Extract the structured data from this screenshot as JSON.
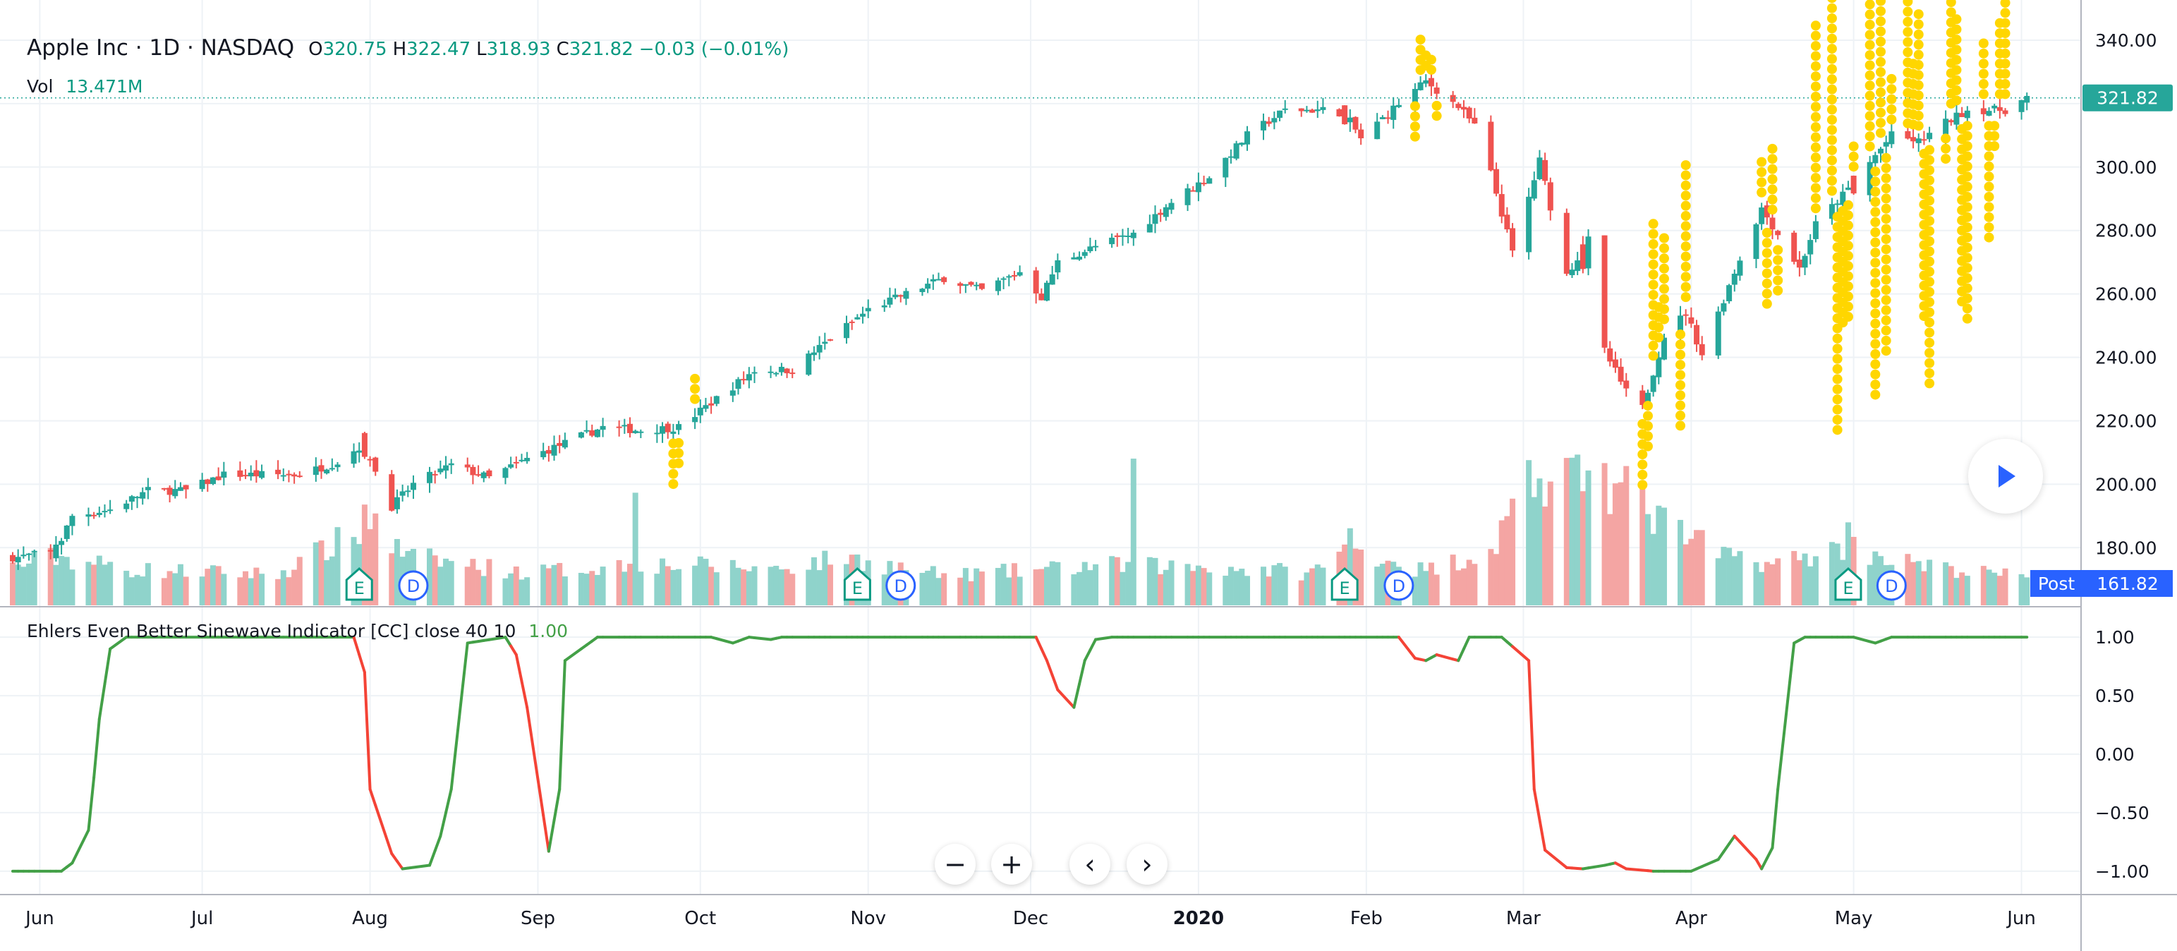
{
  "legend": {
    "symbol": "Apple Inc · 1D · NASDAQ",
    "o_label": "O",
    "o_value": "320.75",
    "h_label": "H",
    "h_value": "322.47",
    "l_label": "L",
    "l_value": "318.93",
    "c_label": "C",
    "c_value": "321.82",
    "change": "−0.03 (−0.01%)"
  },
  "volume_legend": {
    "label": "Vol",
    "value": "13.471M"
  },
  "indicator_legend": {
    "label": "Ehlers Even Better Sinewave Indicator [CC] close 40 10",
    "value": "1.00"
  },
  "price_badge": "321.82",
  "post_badge": {
    "label": "Post",
    "value": "161.82"
  },
  "nav_buttons": {
    "zoom_out": "−",
    "zoom_in": "+",
    "back": "‹",
    "forward": "›"
  },
  "colors": {
    "up": "#26a69a",
    "down": "#ef5350",
    "vol_up": "#8fd3cb",
    "vol_down": "#f4a5a3",
    "dots": "#ffd600",
    "sine_up": "#43a047",
    "sine_down": "#f44336",
    "accent": "#2962ff"
  },
  "chart_data": [
    {
      "type": "candlestick",
      "title": "Apple Inc · 1D · NASDAQ",
      "x_axis": {
        "type": "date",
        "range": [
          "2019-05-27",
          "2020-06-12"
        ],
        "tick_labels": [
          "Jun",
          "Jul",
          "Aug",
          "Sep",
          "Oct",
          "Nov",
          "Dec",
          "2020",
          "Feb",
          "Mar",
          "Apr",
          "May",
          "Jun"
        ],
        "tick_dates": [
          "2019-06-01",
          "2019-07-01",
          "2019-08-01",
          "2019-09-01",
          "2019-10-01",
          "2019-11-01",
          "2019-12-01",
          "2020-01-01",
          "2020-02-01",
          "2020-03-01",
          "2020-04-01",
          "2020-05-01",
          "2020-06-01"
        ]
      },
      "y_axis": {
        "position": "right",
        "range": [
          161.82,
          346
        ],
        "ticks": [
          180,
          200,
          220,
          240,
          260,
          280,
          300,
          320,
          340
        ],
        "tick_labels": [
          "180.00",
          "200.00",
          "220.00",
          "240.00",
          "260.00",
          "280.00",
          "300.00",
          "320.00",
          "340.00"
        ]
      },
      "last_price": 321.82,
      "grid": true,
      "price_keypoints": [
        [
          "2019-05-28",
          177
        ],
        [
          "2019-06-04",
          179
        ],
        [
          "2019-06-07",
          190
        ],
        [
          "2019-06-14",
          192
        ],
        [
          "2019-06-21",
          198
        ],
        [
          "2019-06-28",
          198
        ],
        [
          "2019-07-05",
          203
        ],
        [
          "2019-07-12",
          203
        ],
        [
          "2019-07-19",
          203
        ],
        [
          "2019-07-26",
          207
        ],
        [
          "2019-07-31",
          213
        ],
        [
          "2019-08-02",
          204
        ],
        [
          "2019-08-05",
          193
        ],
        [
          "2019-08-09",
          200
        ],
        [
          "2019-08-16",
          206
        ],
        [
          "2019-08-23",
          202
        ],
        [
          "2019-08-30",
          208
        ],
        [
          "2019-09-06",
          213
        ],
        [
          "2019-09-13",
          218
        ],
        [
          "2019-09-20",
          217
        ],
        [
          "2019-09-27",
          218
        ],
        [
          "2019-10-04",
          227
        ],
        [
          "2019-10-11",
          236
        ],
        [
          "2019-10-18",
          236
        ],
        [
          "2019-10-25",
          246
        ],
        [
          "2019-11-01",
          255
        ],
        [
          "2019-11-08",
          260
        ],
        [
          "2019-11-15",
          265
        ],
        [
          "2019-11-22",
          261
        ],
        [
          "2019-11-29",
          267
        ],
        [
          "2019-12-03",
          259
        ],
        [
          "2019-12-06",
          270
        ],
        [
          "2019-12-13",
          275
        ],
        [
          "2019-12-20",
          279
        ],
        [
          "2019-12-27",
          289
        ],
        [
          "2020-01-03",
          297
        ],
        [
          "2020-01-10",
          310
        ],
        [
          "2020-01-17",
          318
        ],
        [
          "2020-01-24",
          318
        ],
        [
          "2020-01-28",
          317
        ],
        [
          "2020-01-31",
          309
        ],
        [
          "2020-02-07",
          320
        ],
        [
          "2020-02-12",
          327
        ],
        [
          "2020-02-18",
          319
        ],
        [
          "2020-02-21",
          313
        ],
        [
          "2020-02-24",
          298
        ],
        [
          "2020-02-28",
          273
        ],
        [
          "2020-03-04",
          302
        ],
        [
          "2020-03-09",
          266
        ],
        [
          "2020-03-13",
          277
        ],
        [
          "2020-03-16",
          242
        ],
        [
          "2020-03-20",
          229
        ],
        [
          "2020-03-23",
          224
        ],
        [
          "2020-03-27",
          247
        ],
        [
          "2020-03-31",
          254
        ],
        [
          "2020-04-03",
          241
        ],
        [
          "2020-04-09",
          267
        ],
        [
          "2020-04-14",
          287
        ],
        [
          "2020-04-21",
          268
        ],
        [
          "2020-04-24",
          282
        ],
        [
          "2020-04-30",
          293
        ],
        [
          "2020-05-08",
          310
        ],
        [
          "2020-05-13",
          308
        ],
        [
          "2020-05-18",
          314
        ],
        [
          "2020-05-22",
          318
        ],
        [
          "2020-05-29",
          318
        ],
        [
          "2020-06-02",
          321.82
        ]
      ],
      "big_moves": {
        "2019-06-03": "down",
        "2019-06-04": "up",
        "2019-07-31": "down",
        "2019-08-05": "down",
        "2019-09-04": "up",
        "2019-10-10": "up",
        "2019-10-28": "up",
        "2019-12-03": "down",
        "2020-01-28": "down",
        "2020-01-29": "up",
        "2020-02-24": "down",
        "2020-02-27": "down",
        "2020-03-02": "up",
        "2020-03-09": "down",
        "2020-03-10": "up",
        "2020-03-12": "down",
        "2020-03-13": "up",
        "2020-03-16": "down",
        "2020-03-20": "down",
        "2020-03-24": "up",
        "2020-04-06": "up",
        "2020-04-14": "up",
        "2020-04-21": "down",
        "2020-04-30": "up",
        "2020-05-01": "down"
      },
      "signal_dots": [
        {
          "start": "2019-09-26",
          "end": "2019-09-30",
          "min": 3,
          "max": 5
        },
        {
          "start": "2020-02-10",
          "end": "2020-02-14",
          "min": 2,
          "max": 4
        },
        {
          "start": "2020-03-23",
          "end": "2020-03-31",
          "min": 3,
          "max": 14
        },
        {
          "start": "2020-04-14",
          "end": "2020-04-17",
          "min": 3,
          "max": 8
        },
        {
          "start": "2020-04-24",
          "end": "2020-05-29",
          "min": 3,
          "max": 24
        }
      ]
    },
    {
      "type": "bar",
      "name": "Vol",
      "last_value": "13.471M",
      "baseline": 40,
      "volume_levels": [
        [
          "2019-05-27",
          26
        ],
        [
          "2019-06-04",
          33
        ],
        [
          "2019-06-18",
          24
        ],
        [
          "2019-07-15",
          21
        ],
        [
          "2019-07-31",
          52
        ],
        [
          "2019-08-02",
          48
        ],
        [
          "2019-08-08",
          33
        ],
        [
          "2019-08-30",
          22
        ],
        [
          "2019-09-20",
          28
        ],
        [
          "2019-10-15",
          25
        ],
        [
          "2019-10-28",
          32
        ],
        [
          "2019-11-15",
          20
        ],
        [
          "2019-12-03",
          24
        ],
        [
          "2019-12-13",
          27
        ],
        [
          "2020-01-02",
          26
        ],
        [
          "2020-01-22",
          22
        ],
        [
          "2020-01-29",
          40
        ],
        [
          "2020-02-12",
          23
        ],
        [
          "2020-02-24",
          38
        ],
        [
          "2020-03-02",
          78
        ],
        [
          "2020-03-16",
          84
        ],
        [
          "2020-03-27",
          55
        ],
        [
          "2020-04-06",
          35
        ],
        [
          "2020-04-17",
          28
        ],
        [
          "2020-04-30",
          40
        ],
        [
          "2020-05-14",
          26
        ],
        [
          "2020-06-02",
          19
        ]
      ],
      "volume_spikes": {
        "2019-07-31": 68,
        "2019-08-02": 62,
        "2019-09-19": 76,
        "2019-12-20": 99,
        "2020-01-29": 52,
        "2020-02-28": 72,
        "2020-03-02": 98,
        "2020-03-13": 91,
        "2020-03-16": 96,
        "2020-03-20": 94,
        "2020-04-30": 56
      },
      "event_markers": [
        {
          "date": "2019-07-30",
          "label": "E"
        },
        {
          "date": "2019-08-09",
          "label": "D"
        },
        {
          "date": "2019-10-30",
          "label": "E"
        },
        {
          "date": "2019-11-07",
          "label": "D"
        },
        {
          "date": "2020-01-28",
          "label": "E"
        },
        {
          "date": "2020-02-07",
          "label": "D"
        },
        {
          "date": "2020-04-30",
          "label": "E"
        },
        {
          "date": "2020-05-08",
          "label": "D"
        }
      ]
    },
    {
      "type": "line",
      "name": "Ehlers Even Better Sinewave Indicator [CC] close 40 10",
      "last_value": 1.0,
      "y_axis": {
        "position": "right",
        "range": [
          -1.2,
          1.2
        ],
        "ticks": [
          1,
          0.5,
          0,
          -0.5,
          -1
        ],
        "tick_labels": [
          "1.00",
          "0.50",
          "0.00",
          "−0.50",
          "−1.00"
        ]
      },
      "sine_keypoints": [
        [
          "2019-05-27",
          -1.0
        ],
        [
          "2019-06-05",
          -1.0
        ],
        [
          "2019-06-07",
          -0.93
        ],
        [
          "2019-06-10",
          -0.65
        ],
        [
          "2019-06-11",
          -0.2
        ],
        [
          "2019-06-12",
          0.3
        ],
        [
          "2019-06-14",
          0.9
        ],
        [
          "2019-06-17",
          1.0
        ],
        [
          "2019-07-29",
          1.0
        ],
        [
          "2019-07-31",
          0.7
        ],
        [
          "2019-08-01",
          -0.3
        ],
        [
          "2019-08-05",
          -0.85
        ],
        [
          "2019-08-07",
          -0.98
        ],
        [
          "2019-08-12",
          -0.95
        ],
        [
          "2019-08-14",
          -0.7
        ],
        [
          "2019-08-16",
          -0.3
        ],
        [
          "2019-08-19",
          0.95
        ],
        [
          "2019-08-26",
          1.0
        ],
        [
          "2019-08-28",
          0.85
        ],
        [
          "2019-08-30",
          0.4
        ],
        [
          "2019-09-03",
          -0.83
        ],
        [
          "2019-09-05",
          -0.3
        ],
        [
          "2019-09-06",
          0.8
        ],
        [
          "2019-09-09",
          0.9
        ],
        [
          "2019-09-12",
          1.0
        ],
        [
          "2019-10-03",
          1.0
        ],
        [
          "2019-10-07",
          0.95
        ],
        [
          "2019-10-10",
          1.0
        ],
        [
          "2019-10-14",
          0.98
        ],
        [
          "2019-10-16",
          1.0
        ],
        [
          "2019-12-02",
          1.0
        ],
        [
          "2019-12-04",
          0.8
        ],
        [
          "2019-12-06",
          0.55
        ],
        [
          "2019-12-09",
          0.4
        ],
        [
          "2019-12-11",
          0.8
        ],
        [
          "2019-12-13",
          0.98
        ],
        [
          "2019-12-16",
          1.0
        ],
        [
          "2020-02-07",
          1.0
        ],
        [
          "2020-02-10",
          0.82
        ],
        [
          "2020-02-12",
          0.8
        ],
        [
          "2020-02-14",
          0.85
        ],
        [
          "2020-02-18",
          0.8
        ],
        [
          "2020-02-20",
          1.0
        ],
        [
          "2020-02-26",
          1.0
        ],
        [
          "2020-03-02",
          0.8
        ],
        [
          "2020-03-03",
          -0.3
        ],
        [
          "2020-03-05",
          -0.82
        ],
        [
          "2020-03-09",
          -0.97
        ],
        [
          "2020-03-12",
          -0.98
        ],
        [
          "2020-03-16",
          -0.95
        ],
        [
          "2020-03-18",
          -0.93
        ],
        [
          "2020-03-20",
          -0.98
        ],
        [
          "2020-03-25",
          -1.0
        ],
        [
          "2020-04-01",
          -1.0
        ],
        [
          "2020-04-06",
          -0.9
        ],
        [
          "2020-04-09",
          -0.7
        ],
        [
          "2020-04-13",
          -0.9
        ],
        [
          "2020-04-14",
          -0.98
        ],
        [
          "2020-04-16",
          -0.8
        ],
        [
          "2020-04-17",
          -0.3
        ],
        [
          "2020-04-20",
          0.95
        ],
        [
          "2020-04-22",
          1.0
        ],
        [
          "2020-05-01",
          1.0
        ],
        [
          "2020-05-05",
          0.95
        ],
        [
          "2020-05-08",
          1.0
        ],
        [
          "2020-06-02",
          1.0
        ]
      ]
    }
  ]
}
